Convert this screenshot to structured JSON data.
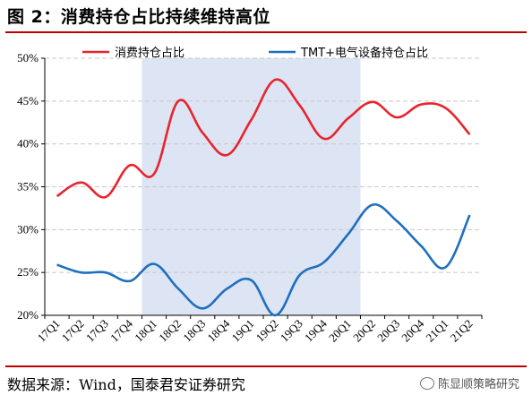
{
  "header": {
    "title": "图 2：消费持仓占比持续维持高位"
  },
  "footer": {
    "source": "数据来源：Wind，国泰君安证券研究",
    "watermark": "陈显顺策略研究"
  },
  "chart_data": {
    "type": "line",
    "title": "图 2：消费持仓占比持续维持高位",
    "categories": [
      "17Q1",
      "17Q2",
      "17Q3",
      "17Q4",
      "18Q1",
      "18Q2",
      "18Q3",
      "18Q4",
      "19Q1",
      "19Q2",
      "19Q3",
      "19Q4",
      "20Q1",
      "20Q2",
      "20Q3",
      "20Q4",
      "21Q1",
      "21Q2"
    ],
    "series": [
      {
        "name": "消费持仓占比",
        "color": "#e8242e",
        "values": [
          33.9,
          35.5,
          33.8,
          37.5,
          36.5,
          45.0,
          41.3,
          38.7,
          42.8,
          47.5,
          44.5,
          40.6,
          43.0,
          44.9,
          43.1,
          44.6,
          44.2,
          41.1
        ]
      },
      {
        "name": "TMT+电气设备持仓占比",
        "color": "#1f6fbf",
        "values": [
          25.9,
          25.0,
          25.0,
          24.0,
          26.0,
          23.1,
          20.8,
          23.1,
          24.1,
          20.0,
          24.7,
          26.2,
          29.5,
          32.9,
          31.0,
          28.1,
          25.6,
          31.7
        ]
      }
    ],
    "yaxis": {
      "min": 20,
      "max": 50,
      "step": 5,
      "unit": "%"
    },
    "ylim": [
      20,
      50
    ],
    "grid": true,
    "legend": "top",
    "shaded_range": [
      "18Q1",
      "20Q1"
    ],
    "shade_color": "#dde4f3"
  }
}
